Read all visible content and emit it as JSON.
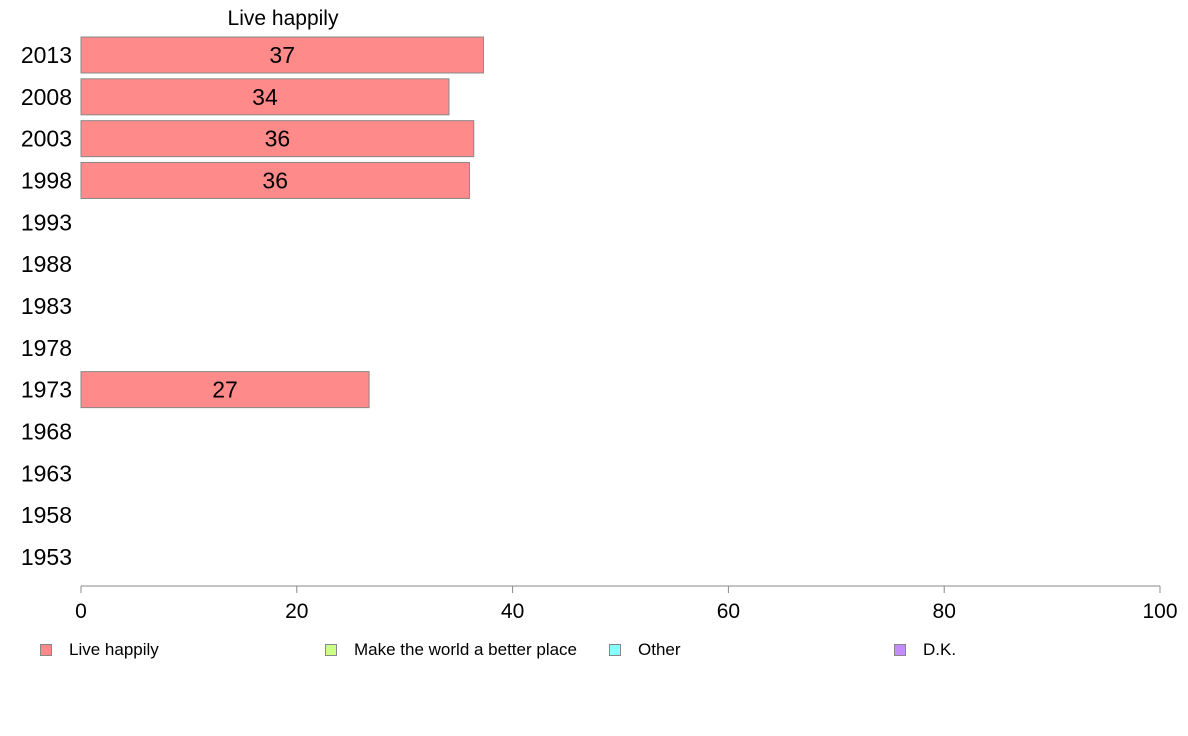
{
  "chart_data": {
    "type": "bar",
    "orientation": "horizontal",
    "title": "Live happily",
    "categories": [
      "2013",
      "2008",
      "2003",
      "1998",
      "1993",
      "1988",
      "1983",
      "1978",
      "1973",
      "1968",
      "1963",
      "1958",
      "1953"
    ],
    "series": [
      {
        "name": "Live happily",
        "color": "#ff8a8a",
        "values": [
          37.3,
          34.1,
          36.4,
          36.0,
          null,
          null,
          null,
          null,
          26.7,
          null,
          null,
          null,
          null
        ],
        "labels": [
          "37",
          "34",
          "36",
          "36",
          "",
          "",
          "",
          "",
          "27",
          "",
          "",
          "",
          ""
        ]
      }
    ],
    "xlim": [
      0,
      100
    ],
    "xticks": [
      "0",
      "20",
      "40",
      "60",
      "80",
      "100"
    ],
    "grid": false,
    "legend_position": "bottom"
  },
  "legend": [
    {
      "label": "Live happily",
      "color": "#ff8a8a"
    },
    {
      "label": "Make the world a better place",
      "color": "#ccff88"
    },
    {
      "label": "Other",
      "color": "#88ffff"
    },
    {
      "label": "D.K.",
      "color": "#c38cff"
    }
  ]
}
